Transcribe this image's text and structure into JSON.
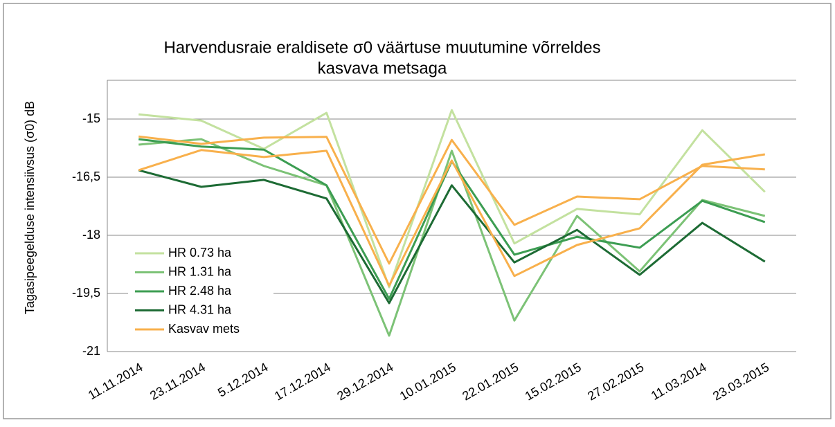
{
  "chart_data": {
    "type": "line",
    "title": [
      "Harvendusraie eraldisete σ0 väärtuse muutumine võrreldes",
      "kasvava metsaga"
    ],
    "y_label": "Tagasipeegelduse intensiivsus (σ0) dB",
    "categories": [
      "11.11.2014",
      "23.11.2014",
      "5.12.2014",
      "17.12.2014",
      "29.12.2014",
      "10.01.2015",
      "22.01.2015",
      "15.02.2015",
      "27.02.2015",
      "11.03.2014",
      "23.03.2015"
    ],
    "series": [
      {
        "name": "HR 0.73 ha",
        "color": "#c3e19f",
        "values": [
          -14.88,
          -15.04,
          -15.77,
          -14.84,
          -19.34,
          -14.77,
          -18.21,
          -17.32,
          -17.46,
          -15.29,
          -16.88
        ]
      },
      {
        "name": "HR 1.31 ha",
        "color": "#7cc276",
        "values": [
          -15.66,
          -15.52,
          -16.21,
          -16.71,
          -20.59,
          -15.82,
          -20.2,
          -17.5,
          -18.93,
          -17.09,
          -17.5
        ]
      },
      {
        "name": "HR 2.48 ha",
        "color": "#3c9d52",
        "values": [
          -15.52,
          -15.71,
          -15.79,
          -16.71,
          -19.64,
          -16.09,
          -18.5,
          -18.04,
          -18.32,
          -17.11,
          -17.66
        ]
      },
      {
        "name": "HR 4.31 ha",
        "color": "#1d6b34",
        "values": [
          -16.32,
          -16.75,
          -16.57,
          -17.05,
          -19.75,
          -16.71,
          -18.7,
          -17.86,
          -19.02,
          -17.68,
          -18.68
        ]
      },
      {
        "name": "Kasvav mets",
        "color": "#f8b04c",
        "values": [
          -15.45,
          -15.64,
          -15.48,
          -15.46,
          -18.73,
          -15.54,
          -17.73,
          -17.0,
          -17.07,
          -16.21,
          -16.3
        ]
      },
      {
        "name": null,
        "color": "#f8b04c",
        "values": [
          -16.32,
          -15.8,
          -15.98,
          -15.82,
          -19.3,
          -16.07,
          -19.05,
          -18.25,
          -17.82,
          -16.18,
          -15.91
        ]
      }
    ],
    "ylim": [
      -21,
      -14
    ],
    "yticks": [
      -15,
      {
        "value": -16.5,
        "label": "-16,5"
      },
      -18,
      {
        "value": -19.5,
        "label": "-19,5"
      },
      -21
    ],
    "grid": true,
    "legend": "left"
  }
}
